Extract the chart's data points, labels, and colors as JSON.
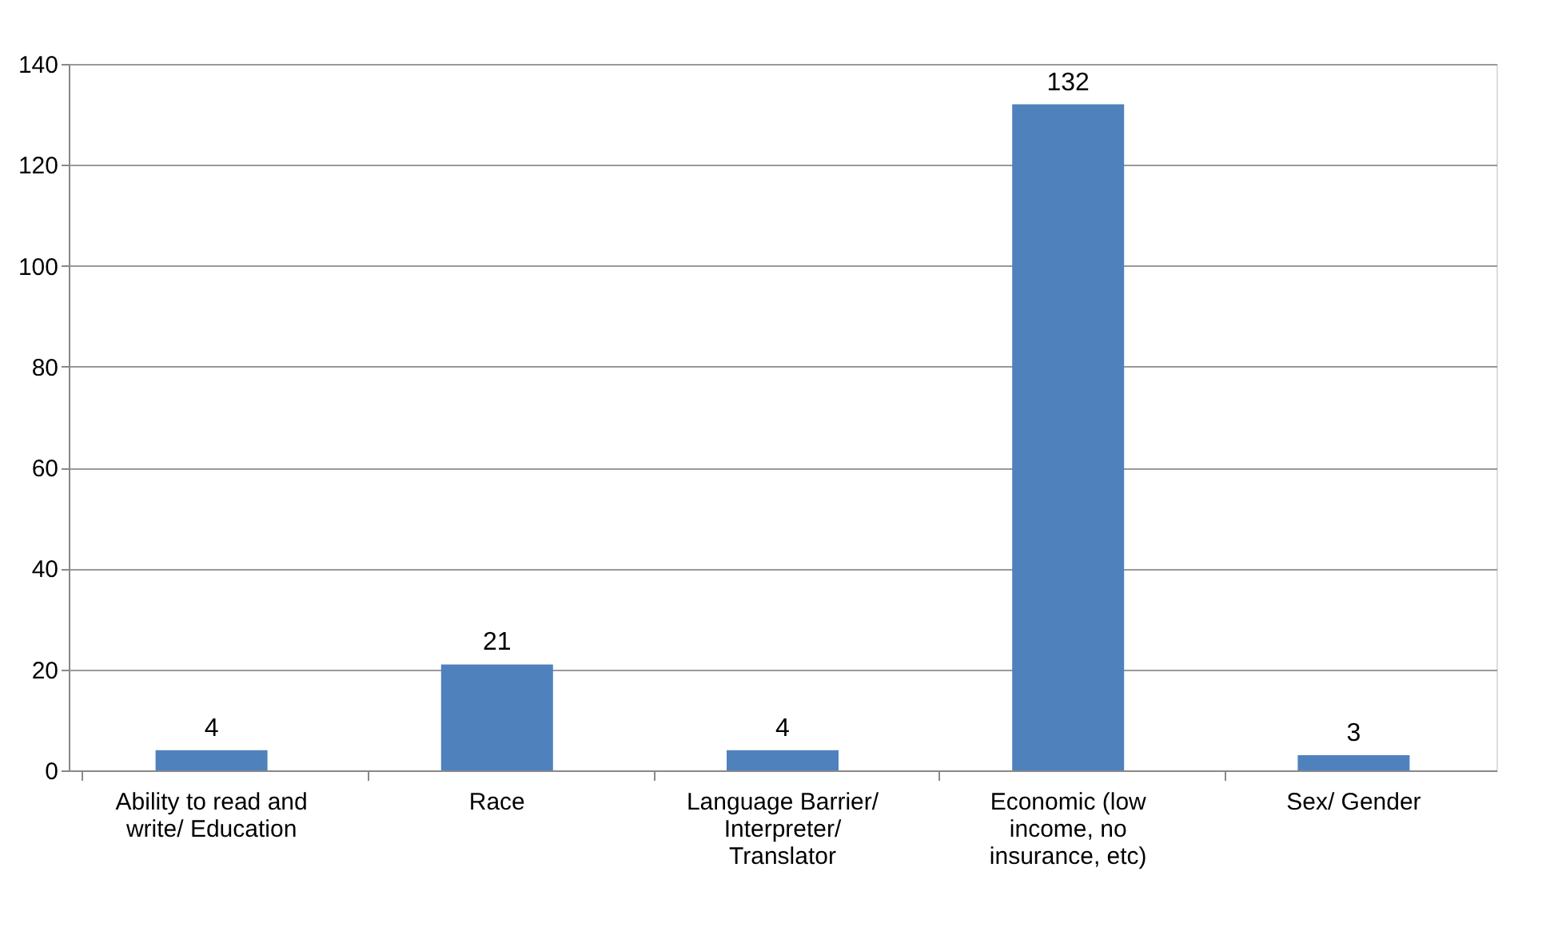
{
  "chart_data": {
    "type": "bar",
    "categories": [
      "Ability to read and write/ Education",
      "Race",
      "Language Barrier/ Interpreter/ Translator",
      "Economic (low income, no insurance, etc)",
      "Sex/ Gender"
    ],
    "values": [
      4,
      21,
      4,
      132,
      3
    ],
    "color": "#4f81bd",
    "ylim": [
      0,
      140
    ],
    "yticks": [
      0,
      20,
      40,
      60,
      80,
      100,
      120,
      140
    ],
    "grid": "y",
    "data_labels": true
  }
}
